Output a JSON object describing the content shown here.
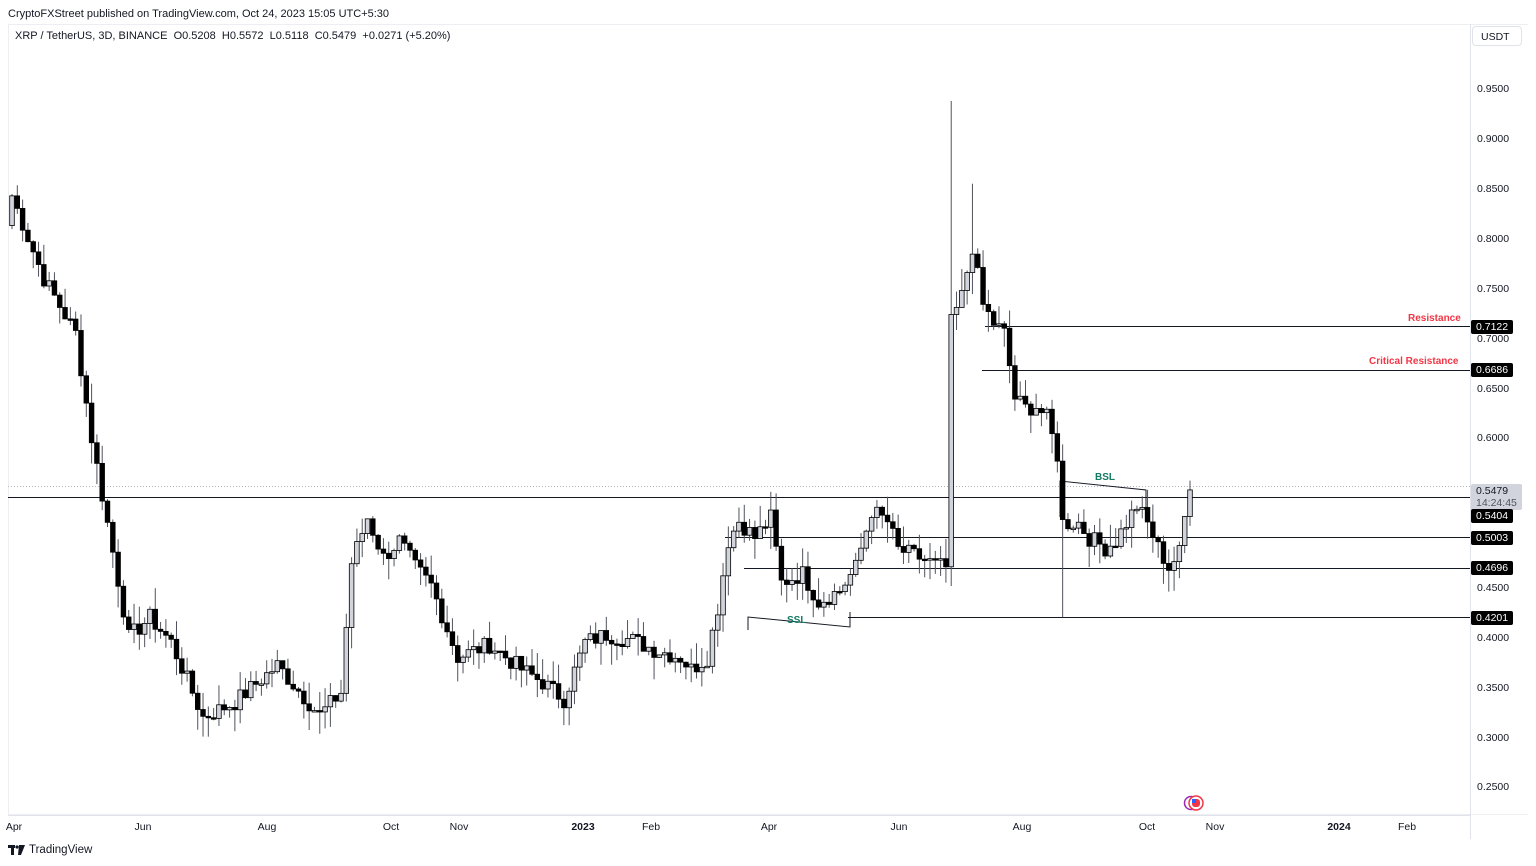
{
  "header": {
    "published": "CryptoFXStreet published on TradingView.com, Oct 24, 2023 15:05 UTC+5:30",
    "symbol": "XRP / TetherUS, 3D, BINANCE",
    "open": "O0.5208",
    "high": "H0.5572",
    "low": "L0.5118",
    "close": "C0.5479",
    "change": "+0.0271 (+5.20%)"
  },
  "price_axis": {
    "currency": "USDT",
    "ticks": [
      "0.9500",
      "0.9000",
      "0.8500",
      "0.8000",
      "0.7500",
      "0.7000",
      "0.6500",
      "0.6000",
      "0.4500",
      "0.4000",
      "0.3500",
      "0.3000",
      "0.2500"
    ],
    "last_price": "0.5479",
    "countdown": "14:24:45",
    "tags": [
      "0.7122",
      "0.6686",
      "0.5404",
      "0.5003",
      "0.4696",
      "0.4201"
    ]
  },
  "time_axis": {
    "labels": [
      "Apr",
      "Jun",
      "Aug",
      "Oct",
      "Nov",
      "2023",
      "Feb",
      "Apr",
      "Jun",
      "Aug",
      "Oct",
      "Nov",
      "2024",
      "Feb"
    ]
  },
  "annotations": {
    "resistance": "Resistance",
    "critical_resistance": "Critical Resistance",
    "bsl": "BSL",
    "ssl": "SSL"
  },
  "colors": {
    "resistance_label": "#f23645",
    "liquidity_label": "#137a63",
    "bull_body": "#d1d4dc",
    "bear_body": "#000000",
    "line": "#131722"
  },
  "footer": {
    "brand": "TradingView"
  },
  "chart_data": {
    "type": "candlestick",
    "title": "XRP / TetherUS, 3D, BINANCE",
    "xlabel": "",
    "ylabel": "USDT",
    "ylim": [
      0.23,
      0.98
    ],
    "x_ticks": [
      "Apr",
      "Jun",
      "Aug",
      "Oct",
      "Nov",
      "2023",
      "Feb",
      "Apr",
      "Jun",
      "Aug",
      "Oct",
      "Nov",
      "2024",
      "Feb"
    ],
    "horizontal_levels": [
      {
        "price": 0.7122,
        "label": "Resistance"
      },
      {
        "price": 0.6686,
        "label": "Critical Resistance"
      },
      {
        "price": 0.5479,
        "label": "Last price"
      },
      {
        "price": 0.5404,
        "label": ""
      },
      {
        "price": 0.5003,
        "label": ""
      },
      {
        "price": 0.4696,
        "label": ""
      },
      {
        "price": 0.4201,
        "label": ""
      }
    ],
    "liquidity_markers": [
      {
        "label": "BSL",
        "approx_price": 0.558
      },
      {
        "label": "SSL",
        "approx_price": 0.41
      }
    ],
    "last_bar": {
      "open": 0.5208,
      "high": 0.5572,
      "low": 0.5118,
      "close": 0.5479,
      "change": 0.0271,
      "change_pct": 5.2
    },
    "candles_ohlc": [
      [
        0.813,
        0.865,
        0.81,
        0.843
      ],
      [
        0.843,
        0.846,
        0.75,
        0.758
      ],
      [
        0.758,
        0.79,
        0.75,
        0.76
      ],
      [
        0.765,
        0.775,
        0.694,
        0.716
      ],
      [
        0.716,
        0.783,
        0.7,
        0.782
      ],
      [
        0.782,
        0.8,
        0.74,
        0.768
      ],
      [
        0.768,
        0.78,
        0.72,
        0.733
      ],
      [
        0.733,
        0.747,
        0.69,
        0.695
      ],
      [
        0.695,
        0.704,
        0.63,
        0.652
      ],
      [
        0.652,
        0.665,
        0.57,
        0.61
      ],
      [
        0.61,
        0.655,
        0.58,
        0.595
      ],
      [
        0.6,
        0.63,
        0.59,
        0.61
      ],
      [
        0.603,
        0.61,
        0.5,
        0.495
      ],
      [
        0.495,
        0.475,
        0.34,
        0.388
      ],
      [
        0.388,
        0.447,
        0.38,
        0.47
      ],
      [
        0.47,
        0.47,
        0.4,
        0.414
      ],
      [
        0.414,
        0.44,
        0.395,
        0.421
      ],
      [
        0.421,
        0.425,
        0.395,
        0.416
      ],
      [
        0.416,
        0.42,
        0.38,
        0.388
      ],
      [
        0.388,
        0.431,
        0.383,
        0.424
      ],
      [
        0.424,
        0.435,
        0.4,
        0.412
      ],
      [
        0.412,
        0.415,
        0.395,
        0.405
      ],
      [
        0.4,
        0.42,
        0.395,
        0.411
      ],
      [
        0.411,
        0.415,
        0.364,
        0.373
      ],
      [
        0.373,
        0.375,
        0.36,
        0.36
      ],
      [
        0.36,
        0.37,
        0.32,
        0.322
      ],
      [
        0.322,
        0.345,
        0.29,
        0.324
      ],
      [
        0.324,
        0.345,
        0.31,
        0.338
      ],
      [
        0.338,
        0.364,
        0.33,
        0.362
      ],
      [
        0.362,
        0.385,
        0.32,
        0.332
      ],
      [
        0.332,
        0.335,
        0.32,
        0.32
      ],
      [
        0.32,
        0.34,
        0.305,
        0.336
      ],
      [
        0.336,
        0.35,
        0.315,
        0.33
      ],
      [
        0.33,
        0.36,
        0.31,
        0.345
      ],
      [
        0.345,
        0.369,
        0.34,
        0.367
      ],
      [
        0.367,
        0.378,
        0.325,
        0.34
      ],
      [
        0.34,
        0.363,
        0.33,
        0.357
      ],
      [
        0.357,
        0.38,
        0.345,
        0.37
      ],
      [
        0.37,
        0.375,
        0.35,
        0.36
      ],
      [
        0.36,
        0.381,
        0.33,
        0.377
      ],
      [
        0.377,
        0.398,
        0.36,
        0.385
      ],
      [
        0.385,
        0.39,
        0.34,
        0.344
      ],
      [
        0.344,
        0.355,
        0.33,
        0.34
      ],
      [
        0.34,
        0.36,
        0.32,
        0.35
      ],
      [
        0.35,
        0.38,
        0.32,
        0.36
      ],
      [
        0.36,
        0.398,
        0.355,
        0.368
      ],
      [
        0.368,
        0.37,
        0.32,
        0.315
      ],
      [
        0.315,
        0.33,
        0.32,
        0.325
      ],
      [
        0.325,
        0.34,
        0.31,
        0.33
      ],
      [
        0.33,
        0.365,
        0.325,
        0.36
      ],
      [
        0.36,
        0.455,
        0.33,
        0.404
      ],
      [
        0.404,
        0.52,
        0.36,
        0.494
      ],
      [
        0.494,
        0.517,
        0.465,
        0.447
      ],
      [
        0.447,
        0.508,
        0.41,
        0.47
      ],
      [
        0.47,
        0.495,
        0.42,
        0.451
      ],
      [
        0.451,
        0.51,
        0.44,
        0.49
      ],
      [
        0.49,
        0.52,
        0.46,
        0.533
      ],
      [
        0.533,
        0.55,
        0.48,
        0.494
      ],
      [
        0.494,
        0.5,
        0.45,
        0.474
      ],
      [
        0.474,
        0.482,
        0.42,
        0.472
      ],
      [
        0.472,
        0.48,
        0.42,
        0.466
      ],
      [
        0.466,
        0.475,
        0.43,
        0.462
      ],
      [
        0.462,
        0.48,
        0.445,
        0.458
      ],
      [
        0.458,
        0.472,
        0.438,
        0.462
      ],
      [
        0.462,
        0.47,
        0.44,
        0.453
      ],
      [
        0.453,
        0.51,
        0.43,
        0.496
      ],
      [
        0.496,
        0.498,
        0.45,
        0.453
      ],
      [
        0.453,
        0.5,
        0.43,
        0.465
      ]
    ]
  }
}
